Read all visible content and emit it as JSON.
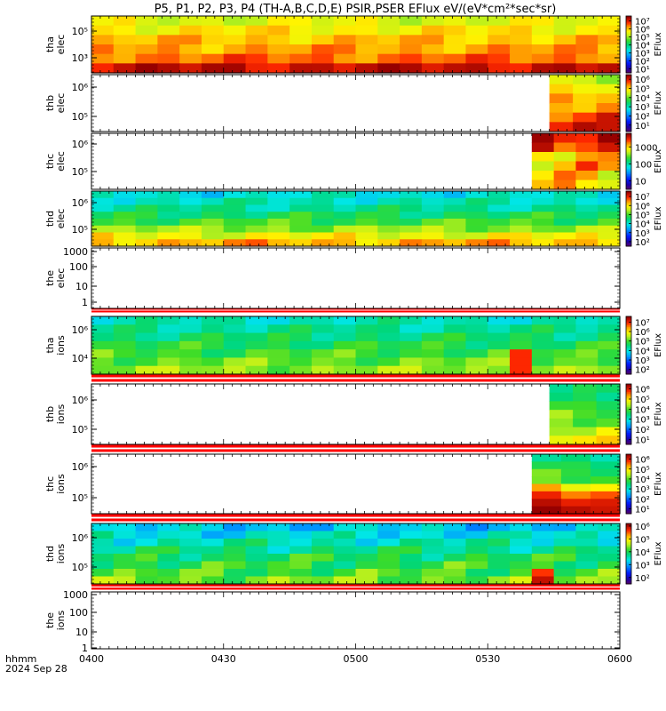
{
  "chart_data": {
    "type": "heatmap",
    "title": "P5, P1, P2, P3, P4 (TH-A,B,C,D,E) PSIR,PSER EFlux eV/(eV*cm²*sec*sr)",
    "x_ticks": [
      "0400",
      "0430",
      "0500",
      "0530",
      "0600"
    ],
    "x_range": [
      "04:00",
      "06:00"
    ],
    "x_axis_label": "hhmm",
    "date_label": "2024 Sep 28",
    "colorbar_label": "EFlux",
    "panels": [
      {
        "id": "tha-elec",
        "label_1": "tha",
        "label_2": "elec",
        "y_ticks": [
          "10⁵",
          "10³"
        ],
        "data_start": "04:00",
        "colorbar": {
          "ticks": [
            "10⁷",
            "10⁶",
            "10⁵",
            "10⁴",
            "10³",
            "10²",
            "10¹"
          ],
          "log_min": 0.5,
          "log_max": 7.6
        },
        "grid": {
          "start": "04:00",
          "end": "06:00",
          "columns": 24,
          "rows_log_eflux_high_energy_to_low": [
            5.5,
            5.8,
            6.1,
            6.3,
            6.6,
            7.3
          ]
        }
      },
      {
        "id": "thb-elec",
        "label_1": "thb",
        "label_2": "elec",
        "y_ticks": [
          "10⁶",
          "10⁵"
        ],
        "data_start": "05:44",
        "colorbar": {
          "ticks": [
            "10⁶",
            "10⁵",
            "10⁴",
            "10³",
            "10²",
            "10¹"
          ],
          "log_min": 0.3,
          "log_max": 6.5
        },
        "grid": {
          "start": "05:44",
          "end": "06:00",
          "columns": 3,
          "rows_log_eflux_high_energy_to_low": [
            4.6,
            4.9,
            5.2,
            5.5,
            5.8,
            6.0
          ]
        }
      },
      {
        "id": "thc-elec",
        "label_1": "thc",
        "label_2": "elec",
        "y_ticks": [
          "10⁶",
          "10⁵"
        ],
        "data_start": "05:40",
        "colorbar": {
          "ticks": [
            "1000",
            "100",
            "10"
          ],
          "log_min": 0.5,
          "log_max": 3.8
        },
        "grid": {
          "start": "05:40",
          "end": "06:00",
          "columns": 4,
          "rows_log_eflux_high_energy_to_low": [
            3.6,
            3.4,
            3.2,
            3.1,
            3.0,
            3.2
          ]
        }
      },
      {
        "id": "thd-elec",
        "label_1": "thd",
        "label_2": "elec",
        "y_ticks": [
          "10⁶",
          "10⁵"
        ],
        "data_start": "04:00",
        "colorbar": {
          "ticks": [
            "10⁷",
            "10⁶",
            "10⁵",
            "10⁴",
            "10³",
            "10²"
          ],
          "log_min": 1.5,
          "log_max": 7.6
        },
        "grid": {
          "start": "04:00",
          "end": "06:00",
          "columns": 24,
          "rows_log_eflux_high_energy_to_low": [
            4.0,
            4.2,
            4.4,
            4.7,
            5.0,
            5.4,
            5.9,
            6.4
          ]
        }
      },
      {
        "id": "the-elec",
        "label_1": "the",
        "label_2": "elec",
        "y_ticks": [
          "1000",
          "100",
          "10",
          "1"
        ],
        "data_start": null,
        "colorbar": null,
        "grid": null
      },
      {
        "id": "tha-ions",
        "label_1": "tha",
        "label_2": "ions",
        "y_ticks": [
          "10⁶",
          "10⁴"
        ],
        "data_start": "04:00",
        "colorbar": {
          "ticks": [
            "10⁷",
            "10⁶",
            "10⁵",
            "10⁴",
            "10³",
            "10²"
          ],
          "log_min": 1.5,
          "log_max": 7.6
        },
        "grid": {
          "start": "04:00",
          "end": "06:00",
          "columns": 24,
          "rows_log_eflux_high_energy_to_low": [
            4.2,
            4.4,
            4.6,
            4.8,
            5.0,
            5.2,
            5.4
          ]
        }
      },
      {
        "id": "thb-ions",
        "label_1": "thb",
        "label_2": "ions",
        "y_ticks": [
          "10⁶",
          "10⁵"
        ],
        "data_start": "05:44",
        "colorbar": {
          "ticks": [
            "10⁶",
            "10⁵",
            "10⁴",
            "10³",
            "10²",
            "10¹"
          ],
          "log_min": 0.5,
          "log_max": 6.5
        },
        "grid": {
          "start": "05:44",
          "end": "06:00",
          "columns": 3,
          "rows_log_eflux_high_energy_to_low": [
            3.4,
            3.6,
            3.8,
            4.0,
            4.3,
            4.6,
            4.9
          ]
        }
      },
      {
        "id": "thc-ions",
        "label_1": "thc",
        "label_2": "ions",
        "y_ticks": [
          "10⁶",
          "10⁵"
        ],
        "data_start": "05:40",
        "colorbar": {
          "ticks": [
            "10⁶",
            "10⁵",
            "10⁴",
            "10³",
            "10²",
            "10¹"
          ],
          "log_min": 0.5,
          "log_max": 6.5
        },
        "grid": {
          "start": "05:40",
          "end": "06:00",
          "columns": 3,
          "rows_log_eflux_high_energy_to_low": [
            3.4,
            3.6,
            3.8,
            4.2,
            5.0,
            5.6,
            5.9,
            6.1
          ]
        }
      },
      {
        "id": "thd-ions",
        "label_1": "thd",
        "label_2": "ions",
        "y_ticks": [
          "10⁶",
          "10⁵"
        ],
        "data_start": "04:00",
        "colorbar": {
          "ticks": [
            "10⁶",
            "10⁵",
            "10⁴",
            "10³",
            "10²"
          ],
          "log_min": 1.5,
          "log_max": 6.2
        },
        "grid": {
          "start": "04:00",
          "end": "06:00",
          "columns": 24,
          "rows_log_eflux_high_energy_to_low": [
            3.2,
            3.4,
            3.6,
            3.8,
            4.0,
            4.1,
            4.2,
            4.4
          ]
        }
      },
      {
        "id": "the-ions",
        "label_1": "the",
        "label_2": "ions",
        "y_ticks": [
          "1000",
          "100",
          "10",
          "1"
        ],
        "data_start": null,
        "colorbar": null,
        "grid": null
      }
    ]
  }
}
